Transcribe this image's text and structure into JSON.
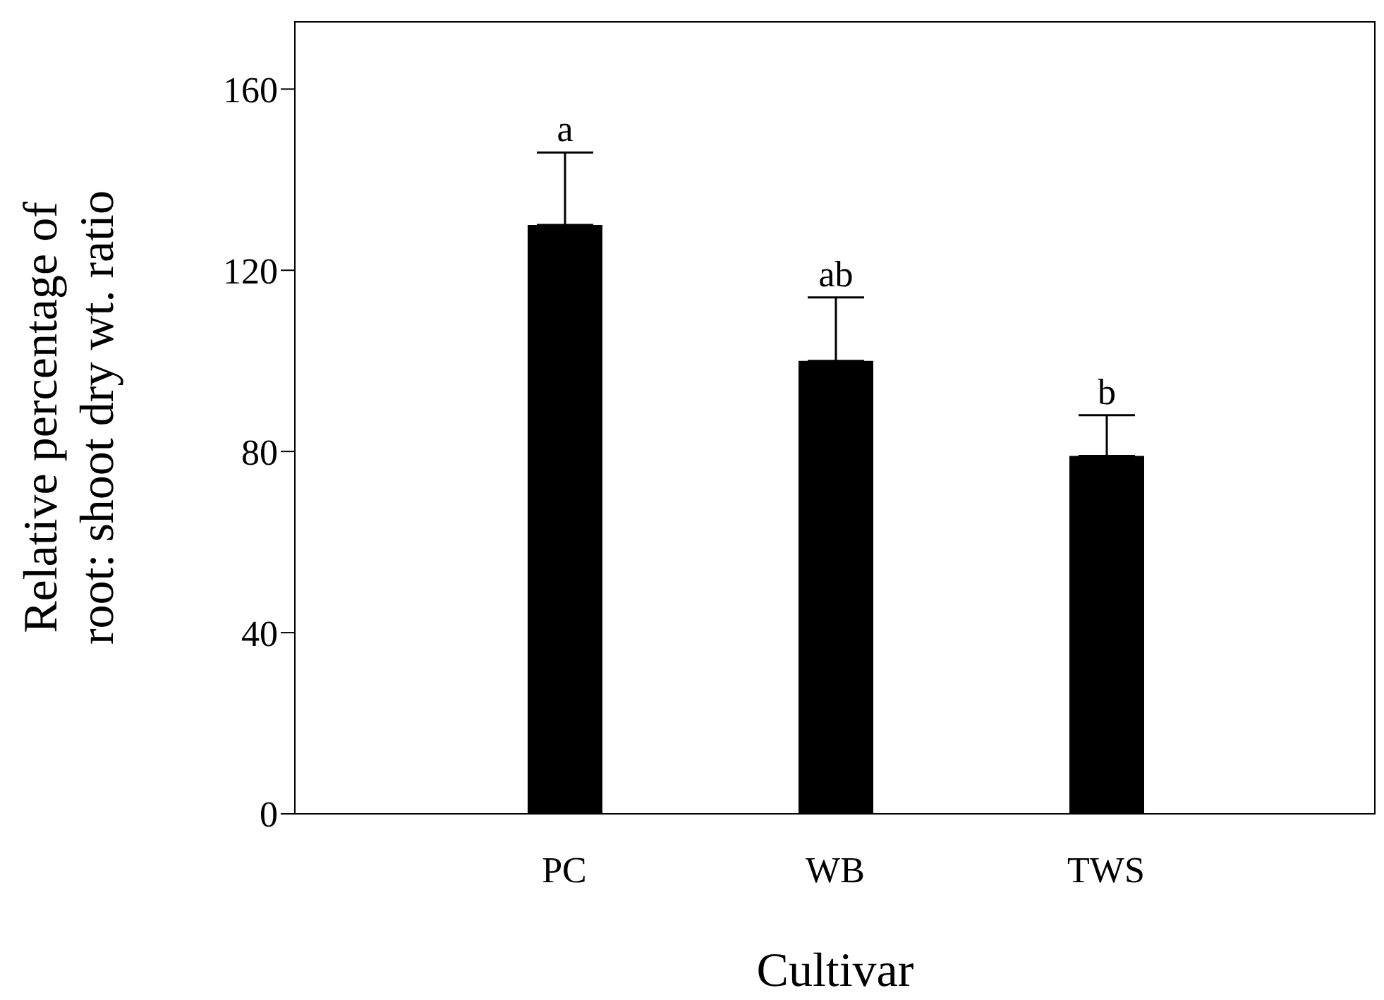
{
  "chart_data": {
    "type": "bar",
    "xlabel": "Cultivar",
    "ylabel": "Relative percentage of\nroot: shoot dry wt. ratio",
    "categories": [
      "PC",
      "WB",
      "TWS"
    ],
    "values": [
      130,
      100,
      79
    ],
    "color": "#000000",
    "errors": [
      [
        130,
        146
      ],
      [
        100,
        114
      ],
      [
        79,
        88
      ]
    ],
    "ylim": [
      0,
      175
    ],
    "yticks": [
      0,
      40,
      80,
      120,
      160
    ],
    "grid": false,
    "annotations": [
      {
        "text": "a",
        "x": "PC",
        "y": 146
      },
      {
        "text": "ab",
        "x": "WB",
        "y": 114
      },
      {
        "text": "b",
        "x": "TWS",
        "y": 88
      }
    ]
  }
}
